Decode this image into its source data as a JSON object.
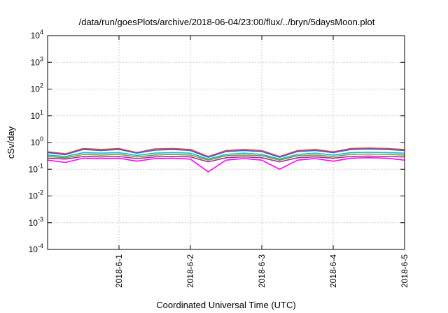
{
  "chart_data": {
    "type": "line",
    "title": "/data/run/goesPlots/archive/2018-06-04/23:00/flux/../bryn/5daysMoon.plot",
    "xlabel": "Coordinated Universal Time (UTC)",
    "ylabel": "cSv/day",
    "yscale": "log",
    "ylim": [
      0.0001,
      10000
    ],
    "xlim": [
      "2018-05-31T00:00",
      "2018-06-05T00:00"
    ],
    "grid": true,
    "legend": "none",
    "y_ticks": [
      {
        "value": 10000,
        "base": "10",
        "exp": "4"
      },
      {
        "value": 1000,
        "base": "10",
        "exp": "3"
      },
      {
        "value": 100,
        "base": "10",
        "exp": "2"
      },
      {
        "value": 10,
        "base": "10",
        "exp": "1"
      },
      {
        "value": 1,
        "base": "10",
        "exp": "0"
      },
      {
        "value": 0.1,
        "base": "10",
        "exp": "-1"
      },
      {
        "value": 0.01,
        "base": "10",
        "exp": "-2"
      },
      {
        "value": 0.001,
        "base": "10",
        "exp": "-3"
      },
      {
        "value": 0.0001,
        "base": "10",
        "exp": "-4"
      }
    ],
    "x_ticks": [
      {
        "value": "2018-06-01T00:00",
        "label": "2018-6-1"
      },
      {
        "value": "2018-06-02T00:00",
        "label": "2018-6-2"
      },
      {
        "value": "2018-06-03T00:00",
        "label": "2018-6-3"
      },
      {
        "value": "2018-06-04T00:00",
        "label": "2018-6-4"
      },
      {
        "value": "2018-06-05T00:00",
        "label": "2018-6-5"
      }
    ],
    "x": [
      "2018-05-31T00:00",
      "2018-05-31T06:00",
      "2018-05-31T12:00",
      "2018-05-31T18:00",
      "2018-06-01T00:00",
      "2018-06-01T06:00",
      "2018-06-01T12:00",
      "2018-06-01T18:00",
      "2018-06-02T00:00",
      "2018-06-02T06:00",
      "2018-06-02T12:00",
      "2018-06-02T18:00",
      "2018-06-03T00:00",
      "2018-06-03T06:00",
      "2018-06-03T12:00",
      "2018-06-03T18:00",
      "2018-06-04T00:00",
      "2018-06-04T06:00",
      "2018-06-04T12:00",
      "2018-06-04T18:00",
      "2018-06-05T00:00"
    ],
    "series": [
      {
        "color": "#e8413c",
        "values": [
          0.45,
          0.38,
          0.6,
          0.55,
          0.6,
          0.42,
          0.58,
          0.6,
          0.55,
          0.3,
          0.5,
          0.55,
          0.5,
          0.3,
          0.5,
          0.55,
          0.45,
          0.6,
          0.62,
          0.6,
          0.55
        ]
      },
      {
        "color": "#3a62d8",
        "values": [
          0.42,
          0.35,
          0.55,
          0.5,
          0.55,
          0.4,
          0.52,
          0.55,
          0.5,
          0.28,
          0.46,
          0.5,
          0.46,
          0.28,
          0.46,
          0.5,
          0.42,
          0.55,
          0.57,
          0.55,
          0.5
        ]
      },
      {
        "color": "#17b8d0",
        "values": [
          0.34,
          0.3,
          0.42,
          0.4,
          0.42,
          0.33,
          0.4,
          0.42,
          0.4,
          0.24,
          0.36,
          0.4,
          0.36,
          0.24,
          0.36,
          0.4,
          0.34,
          0.42,
          0.43,
          0.42,
          0.4
        ]
      },
      {
        "color": "#7a9a3a",
        "values": [
          0.3,
          0.27,
          0.36,
          0.34,
          0.36,
          0.29,
          0.34,
          0.36,
          0.34,
          0.22,
          0.32,
          0.34,
          0.32,
          0.22,
          0.32,
          0.34,
          0.3,
          0.36,
          0.37,
          0.36,
          0.34
        ]
      },
      {
        "color": "#9b2f8f",
        "values": [
          0.26,
          0.24,
          0.3,
          0.29,
          0.3,
          0.25,
          0.29,
          0.3,
          0.29,
          0.19,
          0.27,
          0.29,
          0.27,
          0.19,
          0.27,
          0.29,
          0.26,
          0.3,
          0.31,
          0.3,
          0.29
        ]
      },
      {
        "color": "#ff00ff",
        "values": [
          0.22,
          0.18,
          0.26,
          0.25,
          0.26,
          0.2,
          0.25,
          0.26,
          0.24,
          0.08,
          0.22,
          0.25,
          0.22,
          0.1,
          0.22,
          0.25,
          0.2,
          0.26,
          0.27,
          0.26,
          0.22
        ]
      }
    ]
  }
}
